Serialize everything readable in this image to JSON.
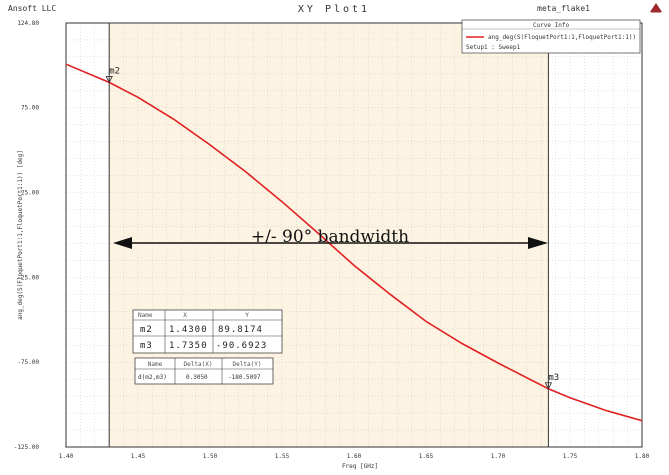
{
  "header": {
    "company": "Ansoft LLC",
    "title": "XY Plot1",
    "design": "meta_flake1",
    "logo_icon": "ansoft-logo-icon"
  },
  "curve_info": {
    "heading": "Curve Info",
    "expression": "ang_deg(S(FloquetPort1:1,FloquetPort1:1))",
    "setup": "Setup1 : Sweep1",
    "line_color": "#e02020"
  },
  "annotation": {
    "text": "+/- 90° bandwidth"
  },
  "markers_table": {
    "headers": [
      "Name",
      "X",
      "Y"
    ],
    "rows": [
      [
        "m2",
        "1.4300",
        "89.8174"
      ],
      [
        "m3",
        "1.7350",
        "-90.6923"
      ]
    ]
  },
  "delta_table": {
    "headers": [
      "Name",
      "Delta(X)",
      "Delta(Y)"
    ],
    "rows": [
      [
        "d(m2,m3)",
        "0.3050",
        "-180.5097"
      ]
    ]
  },
  "chart_data": {
    "type": "line",
    "title": "XY Plot1",
    "xlabel": "Freq [GHz]",
    "ylabel": "ang_deg(S(FloquetPort1:1,FloquetPort1:1)) [deg]",
    "xlim": [
      1.4,
      1.8
    ],
    "ylim": [
      -125.0,
      124.8
    ],
    "x_tick_labels": [
      "1.40",
      "1.45",
      "1.50",
      "1.55",
      "1.60",
      "1.65",
      "1.70",
      "1.75",
      "1.80"
    ],
    "y_tick_labels": [
      "124.80",
      "75.00",
      "25.00",
      "-25.00",
      "-75.00",
      "-125.00"
    ],
    "x_ticks": [
      1.4,
      1.45,
      1.5,
      1.55,
      1.6,
      1.65,
      1.7,
      1.75,
      1.8
    ],
    "y_ticks": [
      124.8,
      75.0,
      25.0,
      -25.0,
      -75.0,
      -125.0
    ],
    "grid": true,
    "highlight_band": [
      1.43,
      1.735
    ],
    "band_color": "#fdf3e2",
    "series": [
      {
        "name": "ang_deg(S(FloquetPort1:1,FloquetPort1:1))",
        "color": "#e02020",
        "x": [
          1.4,
          1.43,
          1.45,
          1.475,
          1.5,
          1.525,
          1.55,
          1.575,
          1.6,
          1.625,
          1.65,
          1.675,
          1.7,
          1.735,
          1.75,
          1.775,
          1.8
        ],
        "y": [
          100.5,
          89.8,
          81.0,
          68.0,
          53.0,
          37.0,
          19.5,
          1.0,
          -18.0,
          -35.0,
          -51.0,
          -64.0,
          -75.5,
          -90.7,
          -96.0,
          -103.5,
          -109.5
        ]
      }
    ],
    "markers": [
      {
        "name": "m2",
        "x": 1.43,
        "y": 89.8174
      },
      {
        "name": "m3",
        "x": 1.735,
        "y": -90.6923
      }
    ]
  }
}
